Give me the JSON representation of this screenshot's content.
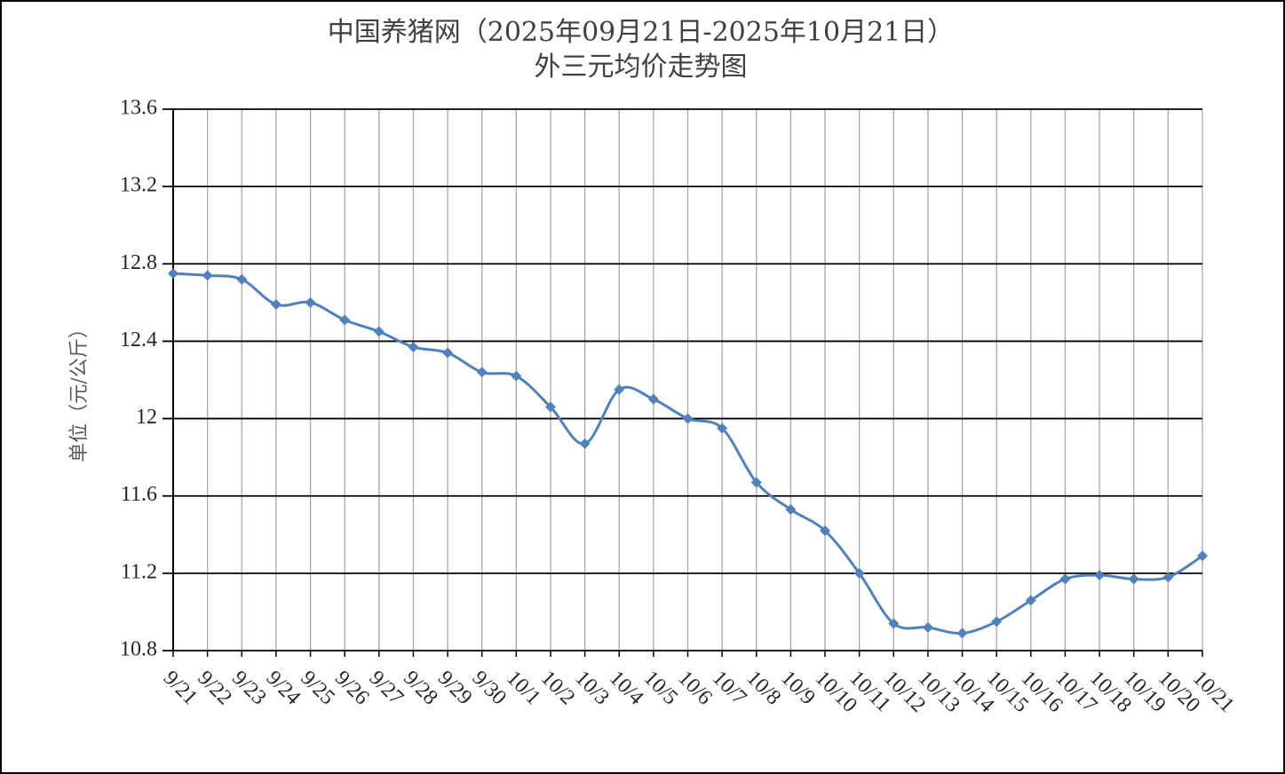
{
  "chart_data": {
    "type": "line",
    "title": "中国养猪网（2025年09月21日-2025年10月21日）",
    "subtitle": "外三元均价走势图",
    "xlabel": "",
    "ylabel": "单位（元/公斤）",
    "ylim": [
      10.8,
      13.6
    ],
    "yticks": [
      "10.8",
      "11.2",
      "11.6",
      "12",
      "12.4",
      "12.8",
      "13.2",
      "13.6"
    ],
    "grid": true,
    "legend": "none",
    "categories": [
      "9/21",
      "9/22",
      "9/23",
      "9/24",
      "9/25",
      "9/26",
      "9/27",
      "9/28",
      "9/29",
      "9/30",
      "10/1",
      "10/2",
      "10/3",
      "10/4",
      "10/5",
      "10/6",
      "10/7",
      "10/8",
      "10/9",
      "10/10",
      "10/11",
      "10/12",
      "10/13",
      "10/14",
      "10/15",
      "10/16",
      "10/17",
      "10/18",
      "10/19",
      "10/20",
      "10/21"
    ],
    "series": [
      {
        "values": [
          12.75,
          12.74,
          12.72,
          12.59,
          12.6,
          12.51,
          12.45,
          12.37,
          12.34,
          12.24,
          12.22,
          12.06,
          11.87,
          12.15,
          12.1,
          12.0,
          11.95,
          11.67,
          11.53,
          11.42,
          11.2,
          10.94,
          10.92,
          10.89,
          10.95,
          11.06,
          11.17,
          11.19,
          11.17,
          11.18,
          11.29
        ]
      }
    ],
    "colors": {
      "line": "#4F81BD",
      "grid": "#000000",
      "vgrid": "#A6A6A6",
      "axis": "#000000"
    }
  }
}
